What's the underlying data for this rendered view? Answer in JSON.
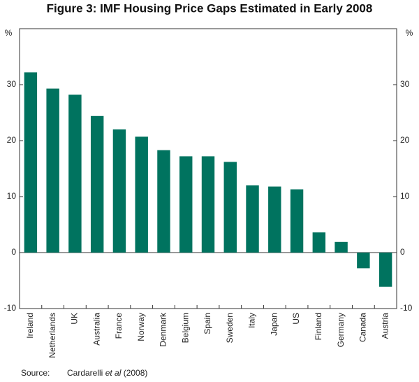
{
  "chart_data": {
    "type": "bar",
    "title": "Figure 3: IMF Housing Price Gaps Estimated in Early 2008",
    "ylabel": "%",
    "y2label": "%",
    "categories": [
      "Ireland",
      "Netherlands",
      "UK",
      "Australia",
      "France",
      "Norway",
      "Denmark",
      "Belgium",
      "Spain",
      "Sweden",
      "Italy",
      "Japan",
      "US",
      "Finland",
      "Germany",
      "Canada",
      "Austria"
    ],
    "values": [
      32.2,
      29.3,
      28.2,
      24.4,
      22,
      20.7,
      18.3,
      17.2,
      17.2,
      16.2,
      12,
      11.8,
      11.3,
      3.6,
      1.9,
      -2.8,
      -6.1
    ],
    "color": "#00735f",
    "ylim": [
      -10,
      40
    ],
    "yticks": [
      -10,
      0,
      10,
      20,
      30
    ],
    "y2lim": [
      -10,
      40
    ],
    "y2ticks": [
      -10,
      0,
      10,
      20,
      30
    ],
    "source_label": "Source:",
    "source_parts": [
      "Cardarelli ",
      "et al",
      " (2008)"
    ]
  }
}
